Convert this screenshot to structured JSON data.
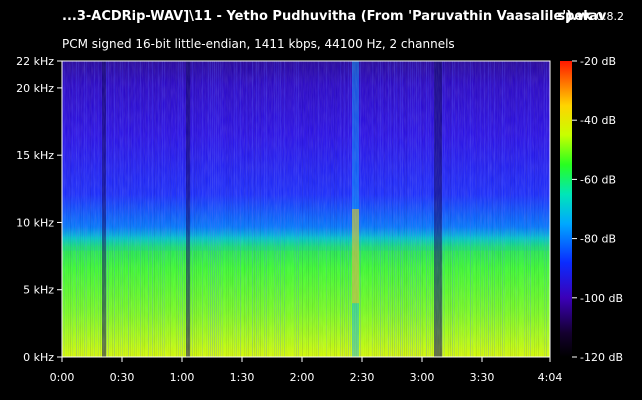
{
  "header": {
    "file_title": "...3-ACDRip-WAV]\\11 - Yetho Pudhuvitha (From 'Paruvathin Vaasalile').wav",
    "app_name": "spek",
    "app_version": "0.8.2",
    "audio_info": "PCM signed 16-bit little-endian, 1411 kbps, 44100 Hz, 2 channels"
  },
  "spectrogram": {
    "freq_axis": {
      "unit": "kHz",
      "max_khz": 22,
      "ticks": [
        {
          "value": 0,
          "label": "0 kHz"
        },
        {
          "value": 5,
          "label": "5 kHz"
        },
        {
          "value": 10,
          "label": "10 kHz"
        },
        {
          "value": 15,
          "label": "15 kHz"
        },
        {
          "value": 20,
          "label": "20 kHz"
        },
        {
          "value": 22,
          "label": "22 kHz"
        }
      ]
    },
    "time_axis": {
      "duration_seconds": 244,
      "ticks": [
        {
          "value": 0,
          "label": "0:00"
        },
        {
          "value": 30,
          "label": "0:30"
        },
        {
          "value": 60,
          "label": "1:00"
        },
        {
          "value": 90,
          "label": "1:30"
        },
        {
          "value": 120,
          "label": "2:00"
        },
        {
          "value": 150,
          "label": "2:30"
        },
        {
          "value": 180,
          "label": "3:00"
        },
        {
          "value": 210,
          "label": "3:30"
        },
        {
          "value": 244,
          "label": "4:04"
        }
      ]
    },
    "cutoff_khz_approx": 8.5
  },
  "color_scale": {
    "unit": "dB",
    "min_db": -120,
    "max_db": -20,
    "ticks": [
      {
        "value": -20,
        "label": "-20 dB"
      },
      {
        "value": -40,
        "label": "-40 dB"
      },
      {
        "value": -60,
        "label": "-60 dB"
      },
      {
        "value": -80,
        "label": "-80 dB"
      },
      {
        "value": -100,
        "label": "-100 dB"
      },
      {
        "value": -120,
        "label": "-120 dB"
      }
    ],
    "colors": [
      "#000000",
      "#1a0033",
      "#3a00b0",
      "#0033ff",
      "#00b4ff",
      "#00e0c0",
      "#22ff22",
      "#c8ff00",
      "#ffe000",
      "#ff8000",
      "#ff2000"
    ]
  }
}
